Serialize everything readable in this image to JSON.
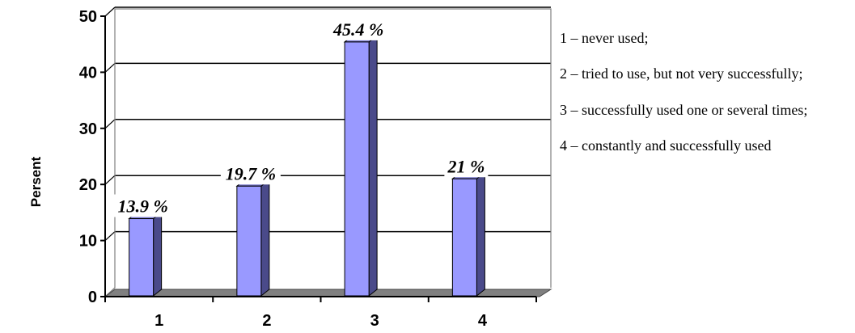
{
  "chart_data": {
    "type": "bar",
    "categories": [
      "1",
      "2",
      "3",
      "4"
    ],
    "values": [
      13.9,
      19.7,
      45.4,
      21
    ],
    "data_labels": [
      "13.9 %",
      "19.7 %",
      "45.4 %",
      "21 %"
    ],
    "ylabel": "Persent",
    "ylim": [
      0,
      50
    ],
    "yticks": [
      "0",
      "10",
      "20",
      "30",
      "40",
      "50"
    ],
    "grid": true,
    "legend_placement": "right",
    "bar_color": "#9999ff",
    "bar_side_color": "#4a4a8a",
    "floor_color": "#808080"
  },
  "legend": [
    "1 – never used;",
    "2 – tried to use, but not very successfully;",
    "3 – successfully used one or several times;",
    "4 – constantly and successfully used"
  ]
}
